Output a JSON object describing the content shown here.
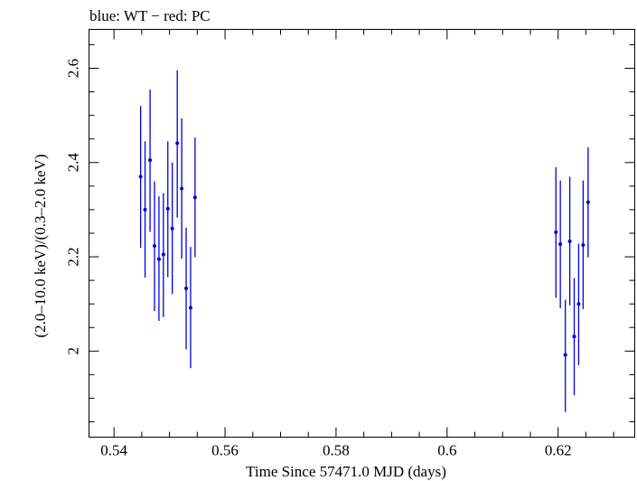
{
  "chart_data": {
    "type": "scatter",
    "title": "blue: WT − red: PC",
    "xlabel": "Time Since 57471.0 MJD (days)",
    "ylabel": "(2.0–10.0 keV)/(0.3–2.0 keV)",
    "xlim": [
      0.5355,
      0.6338
    ],
    "ylim": [
      1.8174,
      2.6825
    ],
    "x_ticks": [
      0.54,
      0.56,
      0.58,
      0.6,
      0.62
    ],
    "x_tick_labels": [
      "0.54",
      "0.56",
      "0.58",
      "0.6",
      "0.62"
    ],
    "y_ticks": [
      2.0,
      2.2,
      2.4,
      2.6
    ],
    "y_tick_labels": [
      "2",
      "2.2",
      "2.4",
      "2.6"
    ],
    "x_minor_step": 0.005,
    "y_minor_step": 0.05,
    "grid": false,
    "series": [
      {
        "name": "WT",
        "color": "#0000dd",
        "points": [
          {
            "x": 0.5448,
            "y": 2.37,
            "ylo": 2.219,
            "yhi": 2.52,
            "xerr": 0.0003
          },
          {
            "x": 0.5456,
            "y": 2.3,
            "ylo": 2.156,
            "yhi": 2.445,
            "xerr": 0.0003
          },
          {
            "x": 0.5465,
            "y": 2.405,
            "ylo": 2.253,
            "yhi": 2.555,
            "xerr": 0.0003
          },
          {
            "x": 0.5473,
            "y": 2.223,
            "ylo": 2.085,
            "yhi": 2.36,
            "xerr": 0.0003
          },
          {
            "x": 0.5481,
            "y": 2.195,
            "ylo": 2.064,
            "yhi": 2.328,
            "xerr": 0.0003
          },
          {
            "x": 0.5489,
            "y": 2.205,
            "ylo": 2.072,
            "yhi": 2.335,
            "xerr": 0.0003
          },
          {
            "x": 0.5497,
            "y": 2.302,
            "ylo": 2.157,
            "yhi": 2.445,
            "xerr": 0.0003
          },
          {
            "x": 0.5505,
            "y": 2.26,
            "ylo": 2.121,
            "yhi": 2.4,
            "xerr": 0.0003
          },
          {
            "x": 0.5514,
            "y": 2.441,
            "ylo": 2.283,
            "yhi": 2.596,
            "xerr": 0.0003
          },
          {
            "x": 0.5522,
            "y": 2.345,
            "ylo": 2.196,
            "yhi": 2.494,
            "xerr": 0.0003
          },
          {
            "x": 0.553,
            "y": 2.133,
            "ylo": 2.004,
            "yhi": 2.262,
            "xerr": 0.0003
          },
          {
            "x": 0.5538,
            "y": 2.092,
            "ylo": 1.964,
            "yhi": 2.221,
            "xerr": 0.0003
          },
          {
            "x": 0.5546,
            "y": 2.326,
            "ylo": 2.199,
            "yhi": 2.453,
            "xerr": 0.0003
          },
          {
            "x": 0.6196,
            "y": 2.252,
            "ylo": 2.113,
            "yhi": 2.39,
            "xerr": 0.0003
          },
          {
            "x": 0.6204,
            "y": 2.227,
            "ylo": 2.091,
            "yhi": 2.362,
            "xerr": 0.0003
          },
          {
            "x": 0.6213,
            "y": 1.992,
            "ylo": 1.871,
            "yhi": 2.109,
            "xerr": 0.0003
          },
          {
            "x": 0.6221,
            "y": 2.233,
            "ylo": 2.097,
            "yhi": 2.37,
            "xerr": 0.0003
          },
          {
            "x": 0.6229,
            "y": 2.031,
            "ylo": 1.906,
            "yhi": 2.155,
            "xerr": 0.0003
          },
          {
            "x": 0.6237,
            "y": 2.1,
            "ylo": 1.97,
            "yhi": 2.228,
            "xerr": 0.0003
          },
          {
            "x": 0.6245,
            "y": 2.225,
            "ylo": 2.089,
            "yhi": 2.362,
            "xerr": 0.0003
          },
          {
            "x": 0.6254,
            "y": 2.316,
            "ylo": 2.199,
            "yhi": 2.432,
            "xerr": 0.0003
          }
        ]
      }
    ]
  }
}
